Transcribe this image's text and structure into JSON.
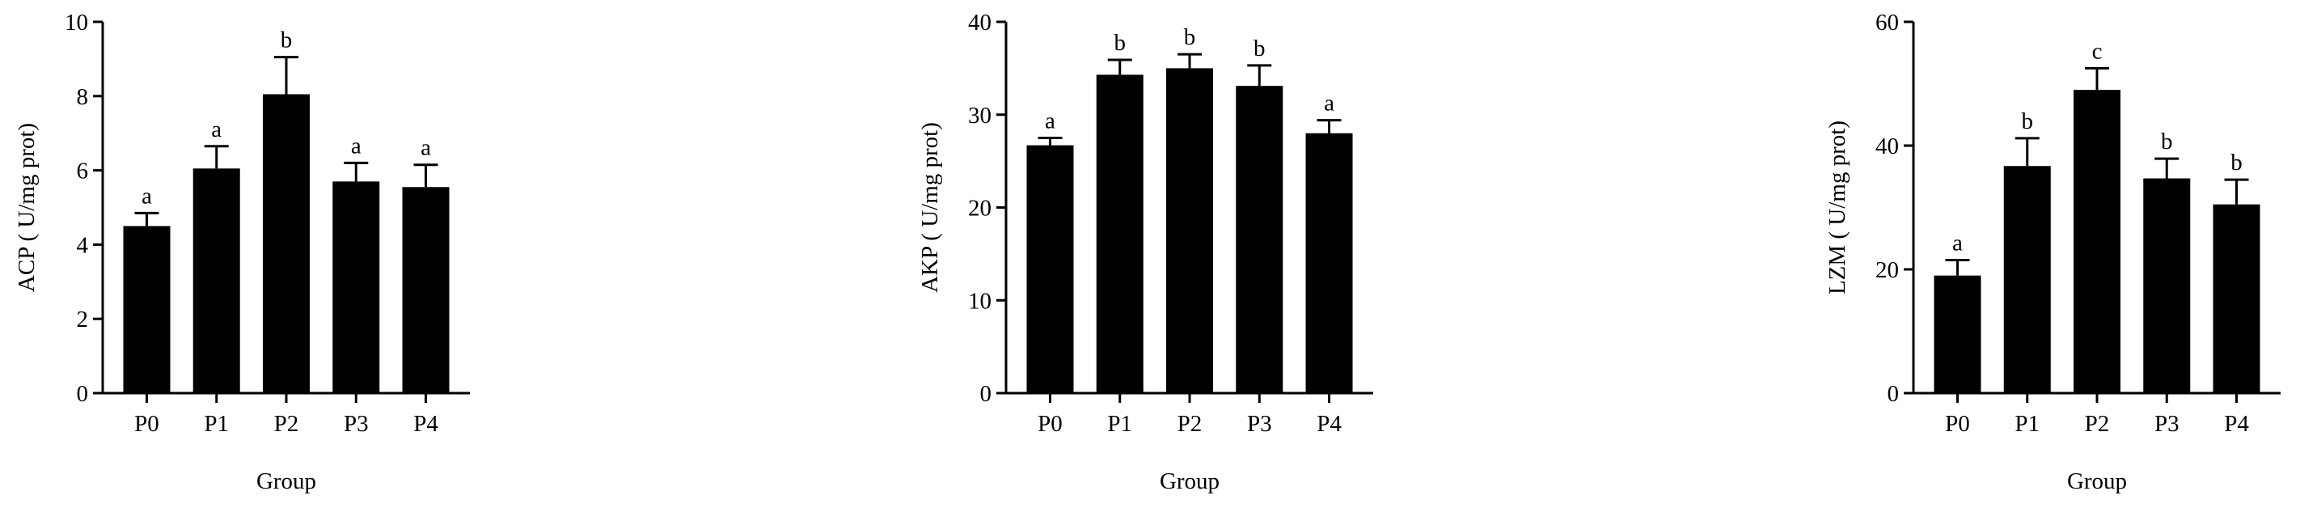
{
  "chart_data": [
    {
      "type": "bar",
      "y_label": "ACP ( U/mg prot)",
      "x_label": "Group",
      "categories": [
        "P0",
        "P1",
        "P2",
        "P3",
        "P4"
      ],
      "values": [
        4.5,
        6.05,
        8.05,
        5.7,
        5.55
      ],
      "errors": [
        0.35,
        0.6,
        1.0,
        0.5,
        0.6
      ],
      "letters": [
        "a",
        "a",
        "b",
        "a",
        "a"
      ],
      "color": "#000000",
      "ylim": [
        0,
        10
      ],
      "yticks": [
        0,
        2,
        4,
        6,
        8,
        10
      ]
    },
    {
      "type": "bar",
      "y_label": "AKP ( U/mg prot)",
      "x_label": "Group",
      "categories": [
        "P0",
        "P1",
        "P2",
        "P3",
        "P4"
      ],
      "values": [
        26.7,
        34.3,
        35.0,
        33.1,
        28.0
      ],
      "errors": [
        0.8,
        1.6,
        1.5,
        2.2,
        1.4
      ],
      "letters": [
        "a",
        "b",
        "b",
        "b",
        "a"
      ],
      "color": "#000000",
      "ylim": [
        0,
        40
      ],
      "yticks": [
        0,
        10,
        20,
        30,
        40
      ]
    },
    {
      "type": "bar",
      "y_label": "LZM ( U/mg prot)",
      "x_label": "Group",
      "categories": [
        "P0",
        "P1",
        "P2",
        "P3",
        "P4"
      ],
      "values": [
        19.0,
        36.7,
        49.0,
        34.7,
        30.5
      ],
      "errors": [
        2.5,
        4.5,
        3.5,
        3.2,
        4.0
      ],
      "letters": [
        "a",
        "b",
        "c",
        "b",
        "b"
      ],
      "color": "#000000",
      "ylim": [
        0,
        60
      ],
      "yticks": [
        0,
        20,
        40,
        60
      ]
    }
  ]
}
